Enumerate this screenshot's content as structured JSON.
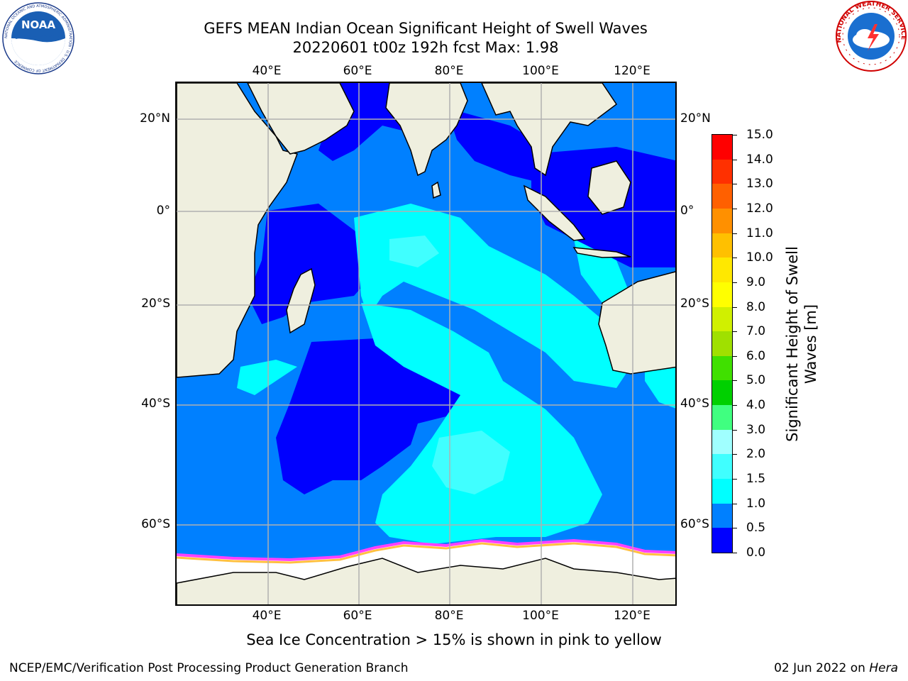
{
  "header": {
    "title_line1": "GEFS MEAN Indian Ocean Significant Height of Swell Waves",
    "title_line2": "20220601 t00z 192h fcst   Max: 1.98",
    "noaa_logo_text": "NOAA",
    "noaa_ring_text": "NATIONAL OCEANIC AND ATMOSPHERIC ADMINISTRATION · U.S. DEPARTMENT OF COMMERCE",
    "nws_ring_text": "NATIONAL WEATHER SERVICE"
  },
  "map": {
    "lon_ticks": [
      "40°E",
      "60°E",
      "80°E",
      "100°E",
      "120°E"
    ],
    "lat_ticks": [
      "20°N",
      "0°",
      "20°S",
      "40°S",
      "60°S"
    ],
    "lon_range": [
      20,
      130
    ],
    "lat_range": [
      -75,
      28
    ],
    "gridlines": true,
    "colors": {
      "land": "#efefdf",
      "ocean_default": "#0080ff",
      "sea_ice": "#ffffff",
      "grid": "#b0b0b0"
    }
  },
  "colorbar": {
    "label": "Significant Height of Swell Waves [m]",
    "ticks": [
      "0.0",
      "0.5",
      "1.0",
      "1.5",
      "2.0",
      "3.0",
      "4.0",
      "5.0",
      "6.0",
      "7.0",
      "8.0",
      "9.0",
      "10.0",
      "11.0",
      "12.0",
      "13.0",
      "14.0",
      "15.0"
    ],
    "colors": [
      "#0000ff",
      "#0080ff",
      "#00ffff",
      "#40ffff",
      "#a0ffff",
      "#40ff80",
      "#00d000",
      "#40e000",
      "#a0e000",
      "#d0f000",
      "#ffff00",
      "#ffe800",
      "#ffc000",
      "#ff9000",
      "#ff6000",
      "#ff3000",
      "#ff0000"
    ]
  },
  "caption": "Sea Ice Concentration > 15% is shown in pink to yellow",
  "footer": {
    "left": "NCEP/EMC/Verification Post Processing Product Generation Branch",
    "right_date": "02 Jun 2022 on ",
    "right_host": "Hera"
  }
}
